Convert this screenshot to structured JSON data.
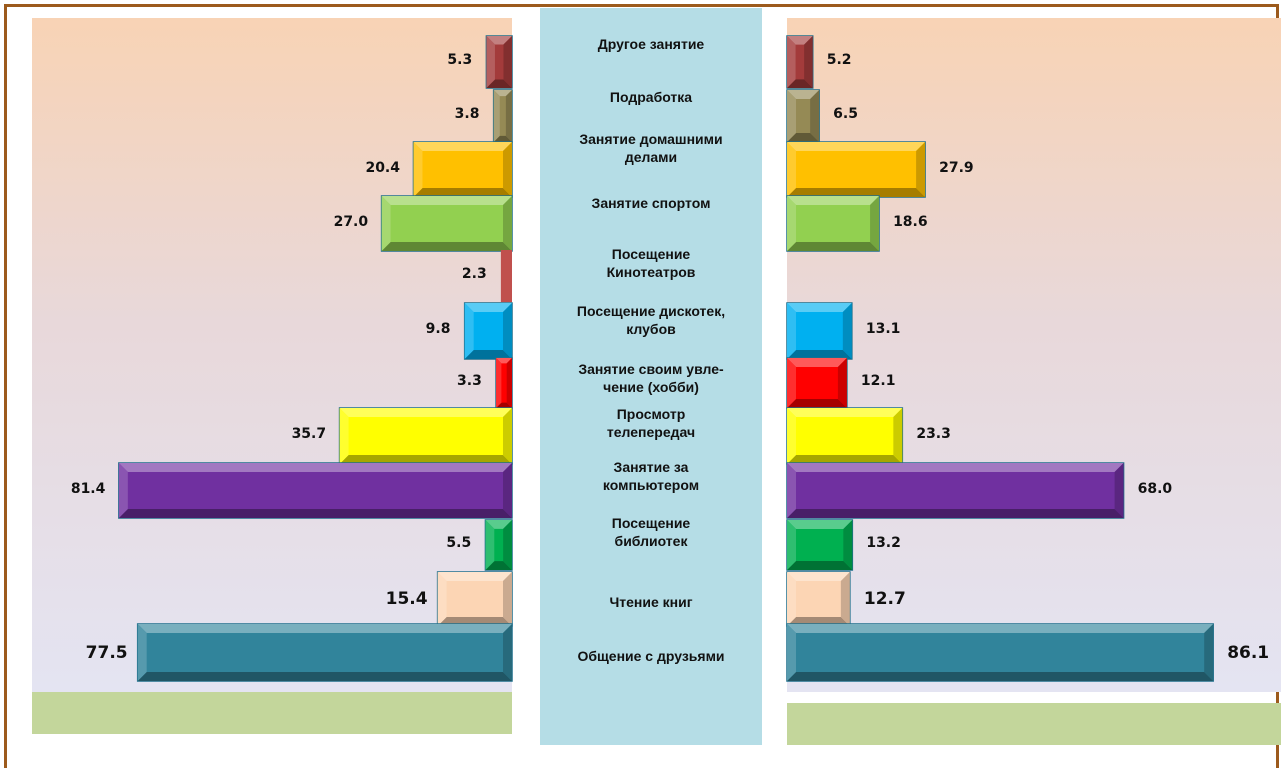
{
  "colors": {
    "frame": "#9c5a1c",
    "center_band": "#b5dde6",
    "floor": "#c3d69b"
  },
  "chart_data": {
    "type": "bar",
    "orientation": "horizontal",
    "layout": "mirrored (left and right of the category column)",
    "categories": [
      "Другое занятие",
      "Подработка",
      "Занятие домашними делами",
      "Занятие спортом",
      "Посещение Кинотеатров",
      "Посещение дискотек, клубов",
      "Занятие своим увле-чение (хобби)",
      "Просмотр телепередач",
      "Занятие за компьютером",
      "Посещение библиотек",
      "Чтение книг",
      "Общение с друзьями"
    ],
    "category_labels_display": [
      [
        "Другое занятие"
      ],
      [
        "Подработка"
      ],
      [
        "Занятие домашними",
        "делами"
      ],
      [
        "Занятие спортом"
      ],
      [
        "Посещение",
        "Кинотеатров"
      ],
      [
        "Посещение дискотек,",
        "клубов"
      ],
      [
        "Занятие своим увле-",
        "чение (хобби)"
      ],
      [
        "Просмотр",
        "телепередач"
      ],
      [
        "Занятие за",
        "компьютером"
      ],
      [
        "Посещение",
        "библиотек"
      ],
      [
        "Чтение книг"
      ],
      [
        "Общение с друзьями"
      ]
    ],
    "series": [
      {
        "side": "left",
        "values": [
          5.3,
          3.8,
          20.4,
          27.0,
          2.3,
          9.8,
          3.3,
          35.7,
          81.4,
          5.5,
          15.4,
          77.5
        ]
      },
      {
        "side": "right",
        "values": [
          5.2,
          6.5,
          27.9,
          18.6,
          null,
          13.1,
          12.1,
          23.3,
          68.0,
          13.2,
          12.7,
          86.1
        ]
      }
    ],
    "value_labels_left": [
      "5.3",
      "3.8",
      "20.4",
      "27.0",
      "2.3",
      "9.8",
      "3.3",
      "35.7",
      "81.4",
      "5.5",
      "15.4",
      "77.5"
    ],
    "value_labels_right": [
      "5.2",
      "6.5",
      "27.9",
      "18.6",
      "",
      "13.1",
      "12.1",
      "23.3",
      "68.0",
      "13.2",
      "12.7",
      "86.1"
    ],
    "bar_colors": [
      "#a33b3b",
      "#958a55",
      "#ffc000",
      "#92d050",
      "#c0504d",
      "#00b0f0",
      "#ff0000",
      "#ffff00",
      "#7030a0",
      "#00b050",
      "#fcd5b4",
      "#31849b"
    ],
    "title": "",
    "xlabel": "",
    "ylabel": "",
    "grid": false,
    "legend": "none"
  }
}
